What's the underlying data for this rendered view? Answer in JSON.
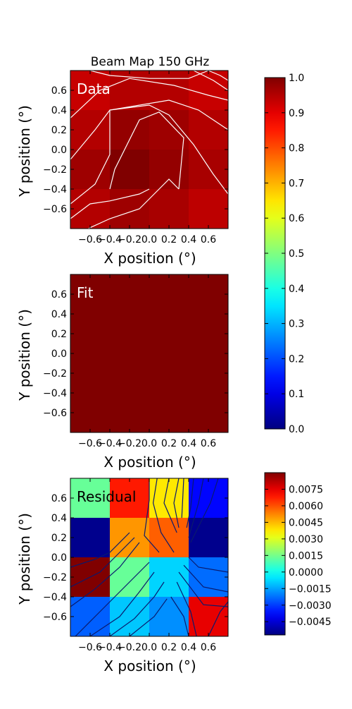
{
  "chart_data": [
    {
      "type": "heatmap",
      "title": "Beam Map 150 GHz",
      "label": "Data",
      "xlabel": "X position (°)",
      "ylabel": "Y position (°)",
      "xlim": [
        -0.8,
        0.8
      ],
      "ylim": [
        -0.8,
        0.8
      ],
      "xticks": [
        "−0.6",
        "−0.4",
        "−0.2",
        "0.0",
        "0.2",
        "0.4",
        "0.6"
      ],
      "yticks": [
        "0.6",
        "0.4",
        "0.2",
        "0.0",
        "−0.2",
        "−0.4",
        "−0.6"
      ],
      "grid_edges": [
        -0.8,
        -0.4,
        0.0,
        0.4,
        0.8
      ],
      "values": [
        [
          0.93,
          0.95,
          0.95,
          0.93
        ],
        [
          0.95,
          0.98,
          0.97,
          0.95
        ],
        [
          0.97,
          1.0,
          0.98,
          0.96
        ],
        [
          0.95,
          0.97,
          0.96,
          0.94
        ]
      ],
      "contour_color": "#ffffff",
      "contours": [
        [
          [
            -0.8,
            -0.55
          ],
          [
            -0.55,
            -0.35
          ],
          [
            -0.4,
            -0.05
          ],
          [
            -0.4,
            0.4
          ],
          [
            0.0,
            0.45
          ],
          [
            0.2,
            0.35
          ],
          [
            0.45,
            0.05
          ],
          [
            0.65,
            -0.25
          ],
          [
            0.8,
            -0.45
          ]
        ],
        [
          [
            -0.8,
            -0.1
          ],
          [
            -0.55,
            0.2
          ],
          [
            -0.4,
            0.4
          ],
          [
            0.2,
            0.5
          ],
          [
            0.5,
            0.4
          ],
          [
            0.65,
            0.3
          ],
          [
            0.8,
            0.2
          ]
        ],
        [
          [
            -0.8,
            0.32
          ],
          [
            -0.5,
            0.6
          ],
          [
            -0.2,
            0.72
          ],
          [
            0.25,
            0.65
          ],
          [
            0.6,
            0.55
          ],
          [
            0.8,
            0.5
          ]
        ],
        [
          [
            -0.6,
            0.8
          ],
          [
            -0.4,
            0.75
          ],
          [
            0.0,
            0.72
          ],
          [
            0.4,
            0.72
          ],
          [
            0.6,
            0.8
          ]
        ],
        [
          [
            0.45,
            0.8
          ],
          [
            0.65,
            0.7
          ],
          [
            0.8,
            0.6
          ]
        ],
        [
          [
            0.6,
            0.8
          ],
          [
            0.72,
            0.75
          ],
          [
            0.8,
            0.7
          ]
        ],
        [
          [
            -0.4,
            -0.4
          ],
          [
            -0.35,
            -0.2
          ],
          [
            -0.1,
            0.3
          ],
          [
            0.1,
            0.38
          ],
          [
            0.35,
            0.12
          ],
          [
            0.3,
            -0.4
          ]
        ],
        [
          [
            -0.62,
            -0.8
          ],
          [
            -0.4,
            -0.7
          ],
          [
            -0.1,
            -0.6
          ],
          [
            0.1,
            -0.4
          ],
          [
            0.2,
            -0.3
          ],
          [
            0.3,
            -0.4
          ]
        ],
        [
          [
            -0.8,
            -0.7
          ],
          [
            -0.6,
            -0.55
          ],
          [
            -0.4,
            -0.52
          ],
          [
            -0.1,
            -0.45
          ],
          [
            0.0,
            -0.4
          ]
        ]
      ]
    },
    {
      "type": "heatmap",
      "label": "Fit",
      "xlabel": "X position (°)",
      "ylabel": "Y position (°)",
      "xlim": [
        -0.8,
        0.8
      ],
      "ylim": [
        -0.8,
        0.8
      ],
      "xticks": [
        "−0.6",
        "−0.4",
        "−0.2",
        "0.0",
        "0.2",
        "0.4",
        "0.6"
      ],
      "yticks": [
        "0.6",
        "0.4",
        "0.2",
        "0.0",
        "−0.2",
        "−0.4",
        "−0.6"
      ],
      "grid_edges": [
        -0.8,
        0.8
      ],
      "values": [
        [
          1.0
        ]
      ],
      "contours": []
    },
    {
      "type": "heatmap",
      "label": "Residual",
      "xlabel": "X position (°)",
      "ylabel": "Y position (°)",
      "xlim": [
        -0.8,
        0.8
      ],
      "ylim": [
        -0.8,
        0.8
      ],
      "xticks": [
        "−0.6",
        "−0.4",
        "−0.2",
        "0.0",
        "0.2",
        "0.4",
        "0.6"
      ],
      "yticks": [
        "0.6",
        "0.4",
        "0.2",
        "0.0",
        "−0.2",
        "−0.4",
        "−0.6"
      ],
      "grid_edges": [
        -0.8,
        -0.4,
        0.0,
        0.4,
        0.8
      ],
      "values": [
        [
          0.0013,
          0.0068,
          0.0038,
          -0.0038
        ],
        [
          -0.0055,
          0.005,
          0.0058,
          -0.0055
        ],
        [
          0.009,
          0.0013,
          -0.0008,
          -0.0023
        ],
        [
          -0.0025,
          -0.001,
          -0.0018,
          0.0075
        ]
      ],
      "contour_color": "#0a1a6e",
      "contours": [
        [
          [
            0.0,
            0.8
          ],
          [
            0.0,
            0.58
          ],
          [
            -0.05,
            0.22
          ],
          [
            0.1,
            0.05
          ]
        ],
        [
          [
            0.08,
            0.8
          ],
          [
            0.04,
            0.55
          ],
          [
            0.12,
            0.25
          ],
          [
            0.25,
            0.05
          ]
        ],
        [
          [
            0.2,
            0.8
          ],
          [
            0.15,
            0.55
          ],
          [
            0.28,
            0.25
          ]
        ],
        [
          [
            0.3,
            0.8
          ],
          [
            0.25,
            0.55
          ],
          [
            0.3,
            0.3
          ]
        ],
        [
          [
            0.35,
            0.8
          ],
          [
            0.34,
            0.6
          ],
          [
            0.33,
            0.4
          ]
        ],
        [
          [
            0.45,
            0.8
          ],
          [
            0.42,
            0.5
          ],
          [
            0.38,
            0.3
          ]
        ],
        [
          [
            0.55,
            0.8
          ],
          [
            0.5,
            0.55
          ],
          [
            0.4,
            0.2
          ]
        ],
        [
          [
            0.7,
            0.8
          ],
          [
            0.62,
            0.55
          ],
          [
            0.42,
            0.15
          ]
        ],
        [
          [
            0.4,
            0.0
          ],
          [
            0.5,
            -0.1
          ],
          [
            0.8,
            -0.15
          ]
        ],
        [
          [
            0.35,
            -0.08
          ],
          [
            0.55,
            -0.3
          ],
          [
            0.8,
            -0.35
          ]
        ],
        [
          [
            0.3,
            -0.15
          ],
          [
            0.55,
            -0.48
          ],
          [
            0.8,
            -0.5
          ]
        ],
        [
          [
            0.28,
            -0.25
          ],
          [
            0.42,
            -0.55
          ],
          [
            0.48,
            -0.8
          ]
        ],
        [
          [
            0.22,
            -0.4
          ],
          [
            0.35,
            -0.6
          ],
          [
            0.4,
            -0.8
          ]
        ],
        [
          [
            0.6,
            -0.8
          ],
          [
            0.72,
            -0.55
          ],
          [
            0.8,
            -0.45
          ]
        ],
        [
          [
            -0.8,
            -0.1
          ],
          [
            -0.55,
            -0.02
          ],
          [
            -0.4,
            0.05
          ],
          [
            -0.2,
            0.25
          ]
        ],
        [
          [
            -0.8,
            -0.3
          ],
          [
            -0.5,
            -0.15
          ],
          [
            -0.3,
            0.05
          ],
          [
            -0.15,
            0.2
          ]
        ],
        [
          [
            -0.8,
            -0.5
          ],
          [
            -0.55,
            -0.32
          ],
          [
            -0.3,
            -0.1
          ],
          [
            -0.1,
            0.15
          ]
        ],
        [
          [
            -0.75,
            -0.8
          ],
          [
            -0.5,
            -0.55
          ],
          [
            -0.25,
            -0.3
          ],
          [
            0.0,
            -0.05
          ]
        ],
        [
          [
            -0.6,
            -0.8
          ],
          [
            -0.3,
            -0.6
          ],
          [
            -0.1,
            -0.35
          ],
          [
            0.05,
            -0.15
          ]
        ],
        [
          [
            -0.4,
            -0.8
          ],
          [
            -0.15,
            -0.62
          ],
          [
            0.05,
            -0.4
          ],
          [
            0.15,
            -0.25
          ]
        ],
        [
          [
            -0.2,
            -0.8
          ],
          [
            0.05,
            -0.6
          ],
          [
            0.18,
            -0.42
          ]
        ]
      ]
    }
  ],
  "colorbars": [
    {
      "min": 0.0,
      "max": 1.0,
      "ticks": [
        {
          "v": 1.0,
          "label": "1.0"
        },
        {
          "v": 0.9,
          "label": "0.9"
        },
        {
          "v": 0.8,
          "label": "0.8"
        },
        {
          "v": 0.7,
          "label": "0.7"
        },
        {
          "v": 0.6,
          "label": "0.6"
        },
        {
          "v": 0.5,
          "label": "0.5"
        },
        {
          "v": 0.4,
          "label": "0.4"
        },
        {
          "v": 0.3,
          "label": "0.3"
        },
        {
          "v": 0.2,
          "label": "0.2"
        },
        {
          "v": 0.1,
          "label": "0.1"
        },
        {
          "v": 0.0,
          "label": "0.0"
        }
      ]
    },
    {
      "min": -0.0057,
      "max": 0.009,
      "ticks": [
        {
          "v": 0.0075,
          "label": "0.0075"
        },
        {
          "v": 0.006,
          "label": "0.0060"
        },
        {
          "v": 0.0045,
          "label": "0.0045"
        },
        {
          "v": 0.003,
          "label": "0.0030"
        },
        {
          "v": 0.0015,
          "label": "0.0015"
        },
        {
          "v": 0.0,
          "label": "0.0000"
        },
        {
          "v": -0.0015,
          "label": "−0.0015"
        },
        {
          "v": -0.003,
          "label": "−0.0030"
        },
        {
          "v": -0.0045,
          "label": "−0.0045"
        }
      ]
    }
  ]
}
